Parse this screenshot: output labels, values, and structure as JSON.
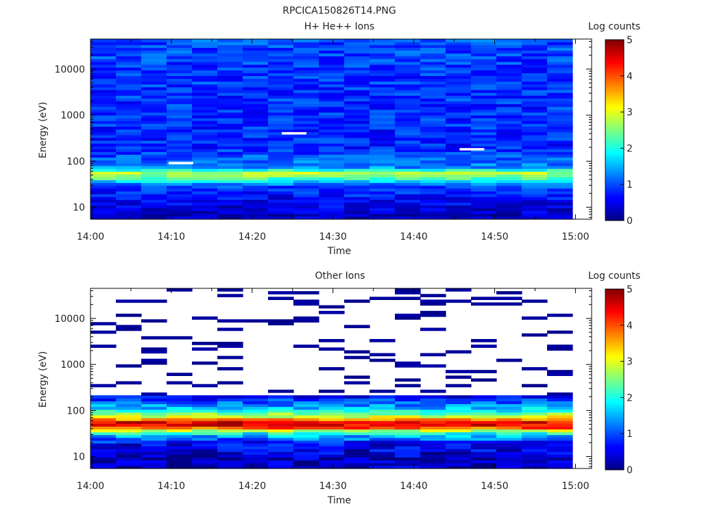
{
  "figure": {
    "title": "RPCICA150826T14.PNG"
  },
  "chart_data": [
    {
      "type": "heatmap",
      "title": "H+ He++ Ions",
      "xlabel": "Time",
      "ylabel": "Energy (eV)",
      "y_scale": "log",
      "xlim": [
        "14:00",
        "15:02"
      ],
      "ylim": [
        5.5,
        45000
      ],
      "x_ticks": [
        "14:00",
        "14:10",
        "14:20",
        "14:30",
        "14:40",
        "14:50",
        "15:00"
      ],
      "y_ticks": [
        "10",
        "100",
        "1000",
        "10000"
      ],
      "colorbar": {
        "title": "Log counts",
        "min": 0,
        "max": 5,
        "ticks": [
          "0",
          "1",
          "2",
          "3",
          "4",
          "5"
        ],
        "colormap": "jet"
      },
      "time_bins": 19,
      "energy_bins": 64,
      "profile": [
        {
          "energy": 8,
          "log_counts": 0.4
        },
        {
          "energy": 15,
          "log_counts": 0.6
        },
        {
          "energy": 30,
          "log_counts": 1.0
        },
        {
          "energy": 45,
          "log_counts": 2.4
        },
        {
          "energy": 55,
          "log_counts": 2.8
        },
        {
          "energy": 75,
          "log_counts": 1.3
        },
        {
          "energy": 200,
          "log_counts": 0.8
        },
        {
          "energy": 10000,
          "log_counts": 0.9
        },
        {
          "energy": 40000,
          "log_counts": 1.0
        }
      ],
      "gaps": [
        {
          "time": "14:10",
          "energy": 90
        },
        {
          "time": "14:24",
          "energy": 400
        },
        {
          "time": "14:46",
          "energy": 180
        }
      ]
    },
    {
      "type": "heatmap",
      "title": "Other Ions",
      "xlabel": "Time",
      "ylabel": "Energy (eV)",
      "y_scale": "log",
      "xlim": [
        "14:00",
        "15:02"
      ],
      "ylim": [
        5.5,
        45000
      ],
      "x_ticks": [
        "14:00",
        "14:10",
        "14:20",
        "14:30",
        "14:40",
        "14:50",
        "15:00"
      ],
      "y_ticks": [
        "10",
        "100",
        "1000",
        "10000"
      ],
      "colorbar": {
        "title": "Log counts",
        "min": 0,
        "max": 5,
        "ticks": [
          "0",
          "1",
          "2",
          "3",
          "4",
          "5"
        ],
        "colormap": "jet"
      },
      "time_bins": 19,
      "energy_bins": 64,
      "profile": [
        {
          "energy": 8,
          "log_counts": 0.3
        },
        {
          "energy": 20,
          "log_counts": 0.6
        },
        {
          "energy": 33,
          "log_counts": 2.0
        },
        {
          "energy": 45,
          "log_counts": 4.4
        },
        {
          "energy": 55,
          "log_counts": 4.6
        },
        {
          "energy": 70,
          "log_counts": 3.3
        },
        {
          "energy": 100,
          "log_counts": 1.8
        },
        {
          "energy": 200,
          "log_counts": 0.6
        },
        {
          "energy": 1000,
          "log_counts": 0.1
        },
        {
          "energy": 40000,
          "log_counts": 0.1
        }
      ],
      "sparse_above_eV": 220
    }
  ]
}
